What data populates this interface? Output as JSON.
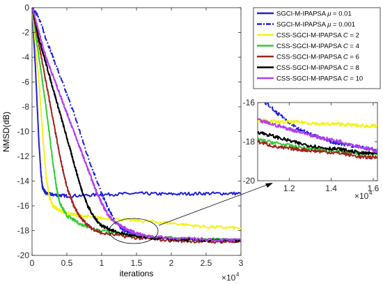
{
  "chart_data": [
    {
      "type": "line",
      "xlabel": "iterations",
      "ylabel": "NMSD(dB)",
      "x_exponent": "×10",
      "x_exponent_power": "4",
      "xlim": [
        0,
        3
      ],
      "ylim": [
        -20,
        0
      ],
      "xticks": [
        "0",
        "0.5",
        "1",
        "1.5",
        "2",
        "2.5",
        "3"
      ],
      "yticks": [
        "0",
        "-2",
        "-4",
        "-6",
        "-8",
        "-10",
        "-12",
        "-14",
        "-16",
        "-18",
        "-20"
      ],
      "legend_position": "top-right, outside",
      "series": [
        {
          "name": "SGCI-M-IPAPSA μ = 0.01",
          "legend_prefix": "SGCI-M-IPAPSA ",
          "legend_var": "μ",
          "legend_suffix": " = 0.01",
          "color": "#1f1fd6",
          "dash": "solid",
          "x": [
            0,
            0.05,
            0.1,
            0.13,
            0.15,
            0.2,
            0.3,
            0.5,
            1.0,
            1.5,
            2.0,
            2.5,
            3.0
          ],
          "y": [
            0,
            -5,
            -11,
            -13.5,
            -14.5,
            -15.0,
            -15.1,
            -15.2,
            -15.1,
            -15.0,
            -15.05,
            -15.0,
            -15.0
          ]
        },
        {
          "name": "SGCI-M-IPAPSA μ = 0.001",
          "legend_prefix": "SGCI-M-IPAPSA ",
          "legend_var": "μ",
          "legend_suffix": " = 0.001",
          "color": "#1f1fd6",
          "dash": "dashdot",
          "x": [
            0,
            0.1,
            0.2,
            0.4,
            0.6,
            0.8,
            1.0,
            1.1,
            1.2,
            1.3,
            1.4,
            1.6,
            2.0,
            2.5,
            3.0
          ],
          "y": [
            0,
            -0.8,
            -2.5,
            -5.5,
            -8.5,
            -12,
            -15,
            -16.3,
            -17.3,
            -17.9,
            -18.2,
            -18.5,
            -18.7,
            -18.8,
            -18.8
          ]
        },
        {
          "name": "CSS-SGCI-M-IPAPSA C = 2",
          "legend_prefix": "CSS-SGCI-M-IPAPSA ",
          "legend_var": "C",
          "legend_suffix": " = 2",
          "color": "#f2f218",
          "dash": "solid",
          "x": [
            0,
            0.05,
            0.1,
            0.15,
            0.2,
            0.25,
            0.3,
            0.4,
            0.5,
            0.7,
            1.0,
            1.5,
            2.0,
            2.5,
            3.0
          ],
          "y": [
            0,
            -3,
            -6,
            -10,
            -13.5,
            -15.3,
            -16.0,
            -16.4,
            -16.6,
            -16.8,
            -17.0,
            -17.2,
            -17.4,
            -17.7,
            -17.8
          ]
        },
        {
          "name": "CSS-SGCI-M-IPAPSA C = 4",
          "legend_prefix": "CSS-SGCI-M-IPAPSA ",
          "legend_var": "C",
          "legend_suffix": " = 4",
          "color": "#33cc33",
          "dash": "solid",
          "x": [
            0,
            0.1,
            0.2,
            0.3,
            0.35,
            0.4,
            0.5,
            0.7,
            1.0,
            1.5,
            2.0,
            2.5,
            3.0
          ],
          "y": [
            0,
            -4,
            -8,
            -12.5,
            -14.5,
            -15.8,
            -16.8,
            -17.5,
            -18.0,
            -18.4,
            -18.6,
            -18.7,
            -18.8
          ]
        },
        {
          "name": "CSS-SGCI-M-IPAPSA C = 6",
          "legend_prefix": "CSS-SGCI-M-IPAPSA ",
          "legend_var": "C",
          "legend_suffix": " = 6",
          "color": "#a0231e",
          "dash": "solid",
          "x": [
            0,
            0.1,
            0.2,
            0.3,
            0.4,
            0.5,
            0.6,
            0.7,
            0.85,
            1.0,
            1.5,
            2.0,
            2.5,
            3.0
          ],
          "y": [
            0,
            -3,
            -6,
            -9,
            -12,
            -14.5,
            -16.0,
            -17.0,
            -17.8,
            -18.2,
            -18.6,
            -18.8,
            -18.9,
            -18.9
          ]
        },
        {
          "name": "CSS-SGCI-M-IPAPSA C = 8",
          "legend_prefix": "CSS-SGCI-M-IPAPSA ",
          "legend_var": "C",
          "legend_suffix": " = 8",
          "color": "#000000",
          "dash": "solid",
          "x": [
            0,
            0.1,
            0.2,
            0.3,
            0.4,
            0.5,
            0.6,
            0.7,
            0.8,
            0.9,
            1.0,
            1.2,
            1.5,
            2.0,
            2.5,
            3.0
          ],
          "y": [
            0,
            -2.5,
            -4.5,
            -6.5,
            -8.5,
            -10.5,
            -12.5,
            -14.5,
            -16.0,
            -17.0,
            -17.6,
            -18.1,
            -18.5,
            -18.7,
            -18.8,
            -18.8
          ]
        },
        {
          "name": "CSS-SGCI-M-IPAPSA C = 10",
          "legend_prefix": "CSS-SGCI-M-IPAPSA ",
          "legend_var": "C",
          "legend_suffix": " = 10",
          "color": "#b33df0",
          "dash": "solid",
          "x": [
            0,
            0.1,
            0.2,
            0.3,
            0.4,
            0.5,
            0.6,
            0.7,
            0.8,
            0.9,
            1.0,
            1.1,
            1.2,
            1.4,
            1.6,
            2.0,
            2.5,
            3.0
          ],
          "y": [
            0,
            -2,
            -4,
            -5.5,
            -7,
            -8.5,
            -10,
            -11.5,
            -13,
            -14.5,
            -15.8,
            -16.8,
            -17.4,
            -18.0,
            -18.4,
            -18.6,
            -18.7,
            -18.8
          ]
        }
      ],
      "annotation": "ellipse around x = 1.2 to 1.8, y = -17.5 to -19.5 with an arrow to the zoomed inset"
    },
    {
      "type": "line",
      "role": "zoomed inset",
      "x_exponent": "×10",
      "x_exponent_power": "4",
      "xlim": [
        1.05,
        1.62
      ],
      "ylim": [
        -20,
        -16
      ],
      "xticks": [
        "1.2",
        "1.4",
        "1.6"
      ],
      "yticks": [
        "-16",
        "-18",
        "-20"
      ],
      "series": [
        {
          "name": "SGCI-M-IPAPSA μ = 0.001",
          "color": "#1f1fd6",
          "dash": "dashdot",
          "x": [
            1.05,
            1.1,
            1.15,
            1.2,
            1.25,
            1.3,
            1.35,
            1.4,
            1.45,
            1.5,
            1.55,
            1.62
          ],
          "y": [
            -15.7,
            -16.1,
            -16.6,
            -17.0,
            -17.4,
            -17.6,
            -17.8,
            -18.0,
            -18.1,
            -18.2,
            -18.3,
            -18.4
          ]
        },
        {
          "name": "CSS-SGCI-M-IPAPSA C = 2",
          "color": "#f2f218",
          "dash": "solid",
          "x": [
            1.05,
            1.15,
            1.25,
            1.35,
            1.45,
            1.55,
            1.62
          ],
          "y": [
            -16.9,
            -17.0,
            -17.0,
            -17.1,
            -17.1,
            -17.2,
            -17.2
          ]
        },
        {
          "name": "CSS-SGCI-M-IPAPSA C = 4",
          "color": "#33cc33",
          "dash": "solid",
          "x": [
            1.05,
            1.15,
            1.25,
            1.35,
            1.45,
            1.55,
            1.62
          ],
          "y": [
            -17.9,
            -18.1,
            -18.3,
            -18.4,
            -18.5,
            -18.6,
            -18.6
          ]
        },
        {
          "name": "CSS-SGCI-M-IPAPSA C = 6",
          "color": "#a0231e",
          "dash": "solid",
          "x": [
            1.05,
            1.15,
            1.25,
            1.35,
            1.45,
            1.55,
            1.62
          ],
          "y": [
            -18.0,
            -18.3,
            -18.4,
            -18.5,
            -18.6,
            -18.8,
            -18.8
          ]
        },
        {
          "name": "CSS-SGCI-M-IPAPSA C = 8",
          "color": "#000000",
          "dash": "solid",
          "x": [
            1.05,
            1.15,
            1.25,
            1.35,
            1.45,
            1.55,
            1.62
          ],
          "y": [
            -17.5,
            -17.8,
            -18.1,
            -18.3,
            -18.4,
            -18.6,
            -18.6
          ]
        },
        {
          "name": "CSS-SGCI-M-IPAPSA C = 10",
          "color": "#b33df0",
          "dash": "solid",
          "x": [
            1.05,
            1.15,
            1.25,
            1.35,
            1.45,
            1.55,
            1.62
          ],
          "y": [
            -16.9,
            -17.2,
            -17.5,
            -17.8,
            -18.0,
            -18.3,
            -18.5
          ]
        }
      ]
    }
  ]
}
